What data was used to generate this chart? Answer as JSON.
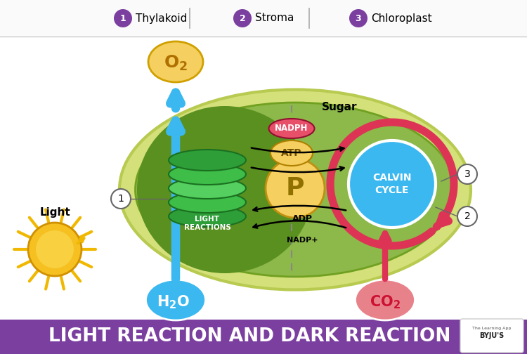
{
  "title": "LIGHT REACTION AND DARK REACTION",
  "title_bg": "#7B3FA0",
  "title_color": "#FFFFFF",
  "bg_color": "#FFFFFF",
  "footer_num_color": "#7B3FA0",
  "chloroplast_outer_color": "#D4E07A",
  "chloroplast_inner_color": "#8DB84A",
  "chloroplast_dark_color": "#5A9020",
  "h2o_color": "#3BB8F0",
  "co2_color": "#E8828A",
  "o2_color": "#F5D060",
  "light_reactions_color": "#44AA44",
  "light_reactions_text": "LIGHT\nREACTIONS",
  "calvin_color": "#3BB8F0",
  "calvin_text": "CALVIN\nCYCLE",
  "p_color": "#F5D060",
  "atp_color": "#F5D060",
  "nadph_color": "#E8506A",
  "sun_body_color": "#F5C020",
  "sun_inner_color": "#F8D040",
  "arrow_blue": "#3BB8F0",
  "arrow_red": "#DD3355",
  "nadp_label": "NADP+",
  "adp_label": "ADP",
  "atp_label": "ATP",
  "nadph_label": "NADPH",
  "p_label": "P",
  "sugar_label": "Sugar",
  "light_label": "Light",
  "footer_labels": [
    "Thylakoid",
    "Stroma",
    "Chloroplast"
  ],
  "footer_nums": [
    "1",
    "2",
    "3"
  ]
}
